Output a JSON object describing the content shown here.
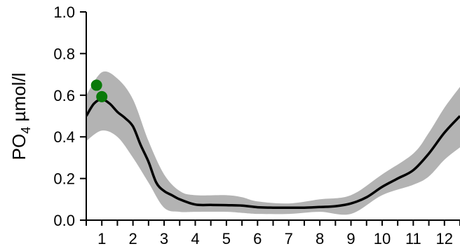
{
  "chart_data": {
    "type": "line",
    "title": "",
    "xlabel": "",
    "ylabel": {
      "main": "PO",
      "subscript": "4",
      "unit": " µmol/l"
    },
    "xlim": [
      0.5,
      12.5
    ],
    "ylim": [
      0,
      1
    ],
    "x_ticks": [
      1,
      2,
      3,
      4,
      5,
      6,
      7,
      8,
      9,
      10,
      11,
      12
    ],
    "y_ticks": [
      0.0,
      0.2,
      0.4,
      0.6,
      0.8,
      1.0
    ],
    "y_tick_labels": [
      "0.0",
      "0.2",
      "0.4",
      "0.6",
      "0.8",
      "1.0"
    ],
    "grid": false,
    "series": [
      {
        "kind": "band",
        "color": "#b3b3b3",
        "x": [
          0.5,
          1.0,
          1.5,
          2.0,
          2.5,
          3.0,
          3.5,
          4.0,
          5.0,
          5.5,
          6.0,
          7.0,
          8.0,
          9.0,
          10.0,
          11.0,
          11.5,
          12.0,
          12.5
        ],
        "upper": [
          0.6,
          0.71,
          0.68,
          0.58,
          0.38,
          0.22,
          0.14,
          0.12,
          0.12,
          0.11,
          0.09,
          0.08,
          0.1,
          0.12,
          0.22,
          0.32,
          0.42,
          0.54,
          0.64
        ],
        "lower": [
          0.38,
          0.43,
          0.4,
          0.3,
          0.18,
          0.06,
          0.04,
          0.04,
          0.04,
          0.035,
          0.03,
          0.03,
          0.04,
          0.03,
          0.12,
          0.17,
          0.21,
          0.29,
          0.35
        ]
      },
      {
        "kind": "line",
        "color": "#000000",
        "x": [
          0.5,
          0.75,
          1.0,
          1.25,
          1.5,
          1.75,
          2.0,
          2.25,
          2.5,
          2.75,
          3.0,
          3.25,
          3.5,
          4.0,
          4.5,
          5.0,
          5.5,
          6.0,
          6.5,
          7.0,
          7.5,
          8.0,
          8.5,
          9.0,
          9.5,
          10.0,
          10.5,
          11.0,
          11.5,
          12.0,
          12.5
        ],
        "y": [
          0.5,
          0.56,
          0.58,
          0.56,
          0.52,
          0.49,
          0.45,
          0.36,
          0.28,
          0.18,
          0.14,
          0.12,
          0.1,
          0.075,
          0.073,
          0.072,
          0.07,
          0.062,
          0.06,
          0.06,
          0.06,
          0.063,
          0.067,
          0.08,
          0.11,
          0.16,
          0.2,
          0.24,
          0.32,
          0.42,
          0.5
        ]
      },
      {
        "kind": "scatter",
        "color": "#0a7a0a",
        "x": [
          0.83,
          1.0
        ],
        "y": [
          0.648,
          0.593
        ]
      }
    ]
  }
}
